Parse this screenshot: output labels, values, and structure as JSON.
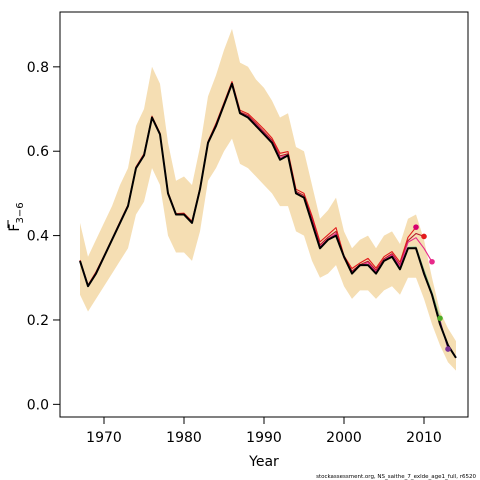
{
  "chart_data": {
    "type": "line",
    "title": "",
    "xlabel": "Year",
    "ylabel_base": "F",
    "ylabel_sub": "3−6",
    "xlim": [
      1964.5,
      2015.5
    ],
    "ylim": [
      -0.03,
      0.93
    ],
    "x_ticks": [
      1970,
      1980,
      1990,
      2000,
      2010
    ],
    "x_tick_labels": [
      "1970",
      "1980",
      "1990",
      "2000",
      "2010"
    ],
    "y_ticks": [
      0.0,
      0.2,
      0.4,
      0.6,
      0.8
    ],
    "y_tick_labels": [
      "0.0",
      "0.2",
      "0.4",
      "0.6",
      "0.8"
    ],
    "grid": false,
    "footnote": "stockassessment.org, NS_saithe_7_exlde_age1_full, r6520",
    "band": {
      "color": "#f5deb3",
      "x": [
        1967,
        1968,
        1969,
        1970,
        1971,
        1972,
        1973,
        1974,
        1975,
        1976,
        1977,
        1978,
        1979,
        1980,
        1981,
        1982,
        1983,
        1984,
        1985,
        1986,
        1987,
        1988,
        1989,
        1990,
        1991,
        1992,
        1993,
        1994,
        1995,
        1996,
        1997,
        1998,
        1999,
        2000,
        2001,
        2002,
        2003,
        2004,
        2005,
        2006,
        2007,
        2008,
        2009,
        2010,
        2011,
        2012,
        2013,
        2014
      ],
      "upper": [
        0.43,
        0.35,
        0.39,
        0.43,
        0.47,
        0.52,
        0.56,
        0.66,
        0.7,
        0.8,
        0.76,
        0.62,
        0.53,
        0.54,
        0.52,
        0.61,
        0.73,
        0.78,
        0.84,
        0.89,
        0.81,
        0.8,
        0.77,
        0.75,
        0.72,
        0.68,
        0.69,
        0.61,
        0.6,
        0.52,
        0.44,
        0.46,
        0.49,
        0.41,
        0.37,
        0.39,
        0.4,
        0.37,
        0.4,
        0.41,
        0.38,
        0.44,
        0.45,
        0.39,
        0.3,
        0.22,
        0.18,
        0.15
      ],
      "lower": [
        0.26,
        0.22,
        0.25,
        0.28,
        0.31,
        0.34,
        0.37,
        0.45,
        0.48,
        0.56,
        0.52,
        0.4,
        0.36,
        0.36,
        0.34,
        0.41,
        0.53,
        0.56,
        0.6,
        0.63,
        0.57,
        0.56,
        0.54,
        0.52,
        0.5,
        0.47,
        0.47,
        0.41,
        0.4,
        0.34,
        0.3,
        0.31,
        0.33,
        0.28,
        0.25,
        0.27,
        0.27,
        0.25,
        0.27,
        0.28,
        0.26,
        0.3,
        0.3,
        0.25,
        0.19,
        0.14,
        0.1,
        0.08
      ]
    },
    "series": [
      {
        "color": "#000000",
        "x": [
          1967,
          1968,
          1969,
          1970,
          1971,
          1972,
          1973,
          1974,
          1975,
          1976,
          1977,
          1978,
          1979,
          1980,
          1981,
          1982,
          1983,
          1984,
          1985,
          1986,
          1987,
          1988,
          1989,
          1990,
          1991,
          1992,
          1993,
          1994,
          1995,
          1996,
          1997,
          1998,
          1999,
          2000,
          2001,
          2002,
          2003,
          2004,
          2005,
          2006,
          2007,
          2008,
          2009,
          2010,
          2011,
          2012,
          2013,
          2014
        ],
        "values": [
          0.34,
          0.28,
          0.31,
          0.35,
          0.39,
          0.43,
          0.47,
          0.56,
          0.59,
          0.68,
          0.64,
          0.5,
          0.45,
          0.45,
          0.43,
          0.51,
          0.62,
          0.66,
          0.71,
          0.76,
          0.69,
          0.68,
          0.66,
          0.64,
          0.62,
          0.58,
          0.59,
          0.5,
          0.49,
          0.43,
          0.37,
          0.39,
          0.4,
          0.35,
          0.31,
          0.33,
          0.33,
          0.31,
          0.34,
          0.35,
          0.32,
          0.37,
          0.37,
          0.31,
          0.26,
          0.19,
          0.14,
          0.11
        ]
      },
      {
        "color": "#e31a1c",
        "x": [
          1967,
          1968,
          1969,
          1970,
          1971,
          1972,
          1973,
          1974,
          1975,
          1976,
          1977,
          1978,
          1979,
          1980,
          1981,
          1982,
          1983,
          1984,
          1985,
          1986,
          1987,
          1988,
          1989,
          1990,
          1991,
          1992,
          1993,
          1994,
          1995,
          1996,
          1997,
          1998,
          1999,
          2000,
          2001,
          2002,
          2003,
          2004,
          2005,
          2006,
          2007,
          2008,
          2009
        ],
        "values": [
          0.342,
          0.283,
          0.314,
          0.352,
          0.392,
          0.433,
          0.473,
          0.563,
          0.594,
          0.683,
          0.643,
          0.503,
          0.452,
          0.453,
          0.434,
          0.513,
          0.623,
          0.666,
          0.715,
          0.765,
          0.697,
          0.689,
          0.671,
          0.652,
          0.631,
          0.595,
          0.599,
          0.51,
          0.5,
          0.447,
          0.385,
          0.402,
          0.419,
          0.352,
          0.322,
          0.335,
          0.346,
          0.323,
          0.35,
          0.362,
          0.337,
          0.396,
          0.42
        ]
      },
      {
        "color": "#b2182b",
        "x": [
          1967,
          1968,
          1969,
          1970,
          1971,
          1972,
          1973,
          1974,
          1975,
          1976,
          1977,
          1978,
          1979,
          1980,
          1981,
          1982,
          1983,
          1984,
          1985,
          1986,
          1987,
          1988,
          1989,
          1990,
          1991,
          1992,
          1993,
          1994,
          1995,
          1996,
          1997,
          1998,
          1999,
          2000,
          2001,
          2002,
          2003,
          2004,
          2005,
          2006,
          2007,
          2008,
          2009,
          2010
        ],
        "values": [
          0.341,
          0.282,
          0.312,
          0.351,
          0.391,
          0.432,
          0.472,
          0.562,
          0.592,
          0.681,
          0.641,
          0.501,
          0.451,
          0.451,
          0.432,
          0.511,
          0.621,
          0.663,
          0.712,
          0.762,
          0.693,
          0.685,
          0.666,
          0.646,
          0.626,
          0.589,
          0.594,
          0.505,
          0.495,
          0.44,
          0.378,
          0.396,
          0.41,
          0.349,
          0.316,
          0.331,
          0.339,
          0.318,
          0.345,
          0.357,
          0.331,
          0.388,
          0.405,
          0.398
        ]
      },
      {
        "color": "#e7298a",
        "x": [
          1967,
          1968,
          1969,
          1970,
          1971,
          1972,
          1973,
          1974,
          1975,
          1976,
          1977,
          1978,
          1979,
          1980,
          1981,
          1982,
          1983,
          1984,
          1985,
          1986,
          1987,
          1988,
          1989,
          1990,
          1991,
          1992,
          1993,
          1994,
          1995,
          1996,
          1997,
          1998,
          1999,
          2000,
          2001,
          2002,
          2003,
          2004,
          2005,
          2006,
          2007,
          2008,
          2009,
          2010,
          2011
        ],
        "values": [
          0.34,
          0.281,
          0.311,
          0.35,
          0.39,
          0.431,
          0.471,
          0.561,
          0.591,
          0.68,
          0.64,
          0.5,
          0.45,
          0.45,
          0.431,
          0.51,
          0.62,
          0.661,
          0.711,
          0.76,
          0.691,
          0.682,
          0.663,
          0.643,
          0.622,
          0.585,
          0.591,
          0.502,
          0.491,
          0.436,
          0.374,
          0.392,
          0.405,
          0.347,
          0.313,
          0.328,
          0.336,
          0.314,
          0.342,
          0.354,
          0.328,
          0.384,
          0.395,
          0.37,
          0.338
        ]
      },
      {
        "color": "#66c2a5",
        "x": [
          2008,
          2009,
          2010,
          2011,
          2012
        ],
        "values": [
          0.372,
          0.373,
          0.318,
          0.265,
          0.205
        ]
      },
      {
        "color": "#a1d76a",
        "x": [
          2008,
          2009,
          2010,
          2011,
          2012
        ],
        "values": [
          0.371,
          0.372,
          0.317,
          0.262,
          0.204
        ]
      },
      {
        "color": "#7b3294",
        "x": [
          2008,
          2009,
          2010,
          2011,
          2012,
          2013
        ],
        "values": [
          0.37,
          0.371,
          0.314,
          0.258,
          0.199,
          0.131
        ]
      }
    ],
    "end_points": [
      {
        "x": 2009,
        "y": 0.42,
        "color": "#d6006e"
      },
      {
        "x": 2010,
        "y": 0.398,
        "color": "#e31a1c"
      },
      {
        "x": 2011,
        "y": 0.338,
        "color": "#e7298a"
      },
      {
        "x": 2012,
        "y": 0.204,
        "color": "#4dac26"
      },
      {
        "x": 2013,
        "y": 0.131,
        "color": "#7b3294"
      }
    ]
  }
}
